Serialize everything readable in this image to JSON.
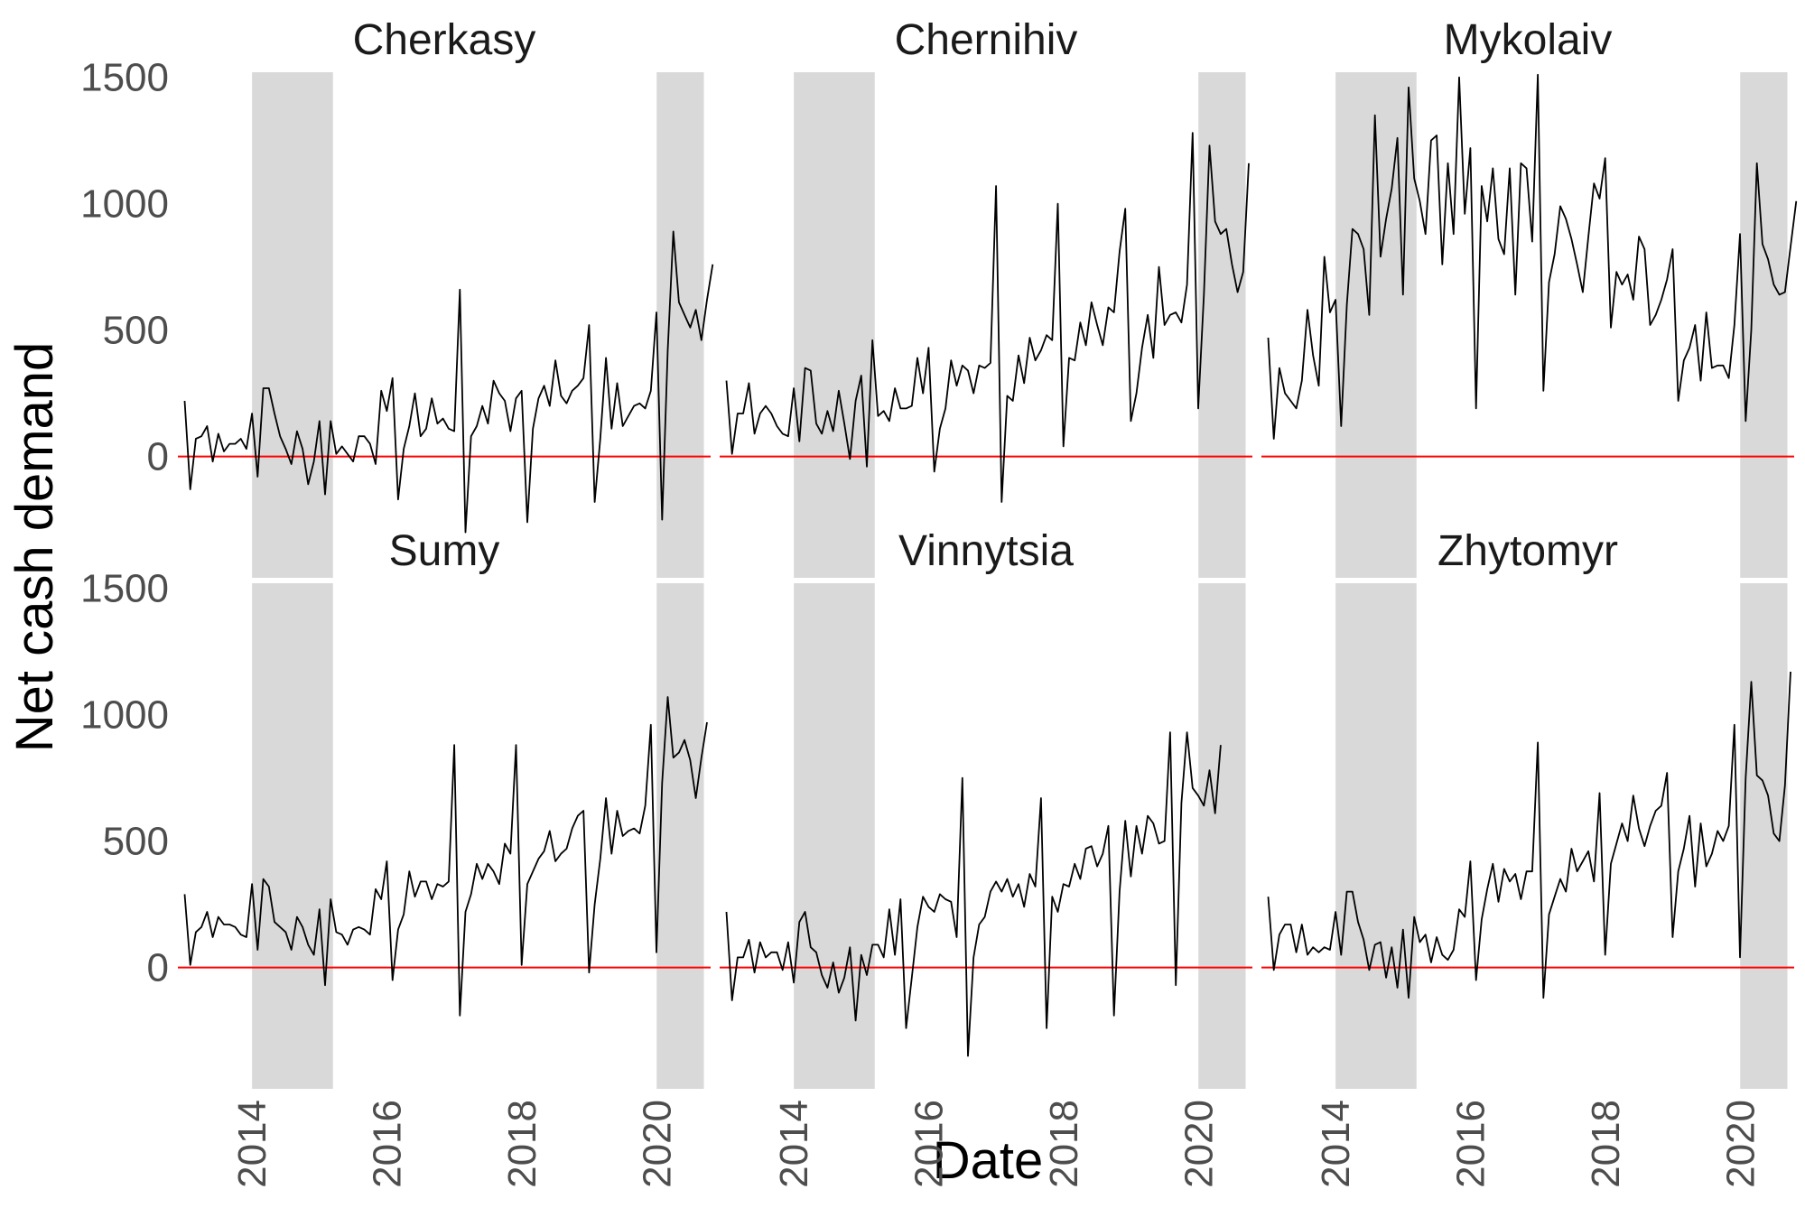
{
  "chart_data": {
    "type": "line",
    "ylabel": "Net cash demand",
    "xlabel": "Date",
    "x_range": [
      2012.9,
      2020.8
    ],
    "ylim": [
      -480,
      1520
    ],
    "yticks": [
      0,
      500,
      1000,
      1500
    ],
    "xticks": [
      2014,
      2016,
      2018,
      2020
    ],
    "shaded_periods": [
      [
        2014.0,
        2015.2
      ],
      [
        2020.0,
        2020.7
      ]
    ],
    "reference_line": 0,
    "grid": false,
    "colors": {
      "line": "#000000",
      "reference": "#ff0000",
      "shade": "#d9d9d9"
    },
    "facets": [
      {
        "title": "Cherkasy",
        "start": 2013.0,
        "step": 0.0833,
        "values": [
          220,
          -130,
          70,
          80,
          120,
          -20,
          90,
          20,
          50,
          50,
          70,
          30,
          170,
          -80,
          270,
          270,
          170,
          80,
          30,
          -30,
          100,
          30,
          -110,
          -20,
          140,
          -150,
          140,
          10,
          40,
          10,
          -20,
          80,
          80,
          50,
          -30,
          260,
          180,
          310,
          -170,
          30,
          120,
          250,
          80,
          110,
          230,
          130,
          150,
          110,
          100,
          660,
          -300,
          80,
          120,
          200,
          130,
          300,
          250,
          220,
          100,
          230,
          260,
          -260,
          110,
          230,
          280,
          200,
          380,
          240,
          210,
          260,
          280,
          310,
          520,
          -180,
          70,
          390,
          110,
          290,
          120,
          160,
          200,
          210,
          190,
          260,
          570,
          -250,
          420,
          890,
          610,
          560,
          510,
          580,
          460,
          620,
          760
        ]
      },
      {
        "title": "Chernihiv",
        "start": 2013.0,
        "step": 0.0833,
        "values": [
          300,
          10,
          170,
          170,
          290,
          90,
          170,
          200,
          170,
          120,
          90,
          80,
          270,
          60,
          350,
          340,
          130,
          90,
          180,
          100,
          260,
          130,
          -10,
          220,
          320,
          -40,
          460,
          160,
          180,
          140,
          270,
          190,
          190,
          200,
          390,
          250,
          430,
          -60,
          110,
          190,
          380,
          280,
          360,
          340,
          250,
          360,
          350,
          370,
          1070,
          -180,
          240,
          220,
          400,
          290,
          470,
          380,
          420,
          480,
          460,
          1000,
          40,
          390,
          380,
          530,
          440,
          610,
          520,
          440,
          590,
          570,
          810,
          980,
          140,
          250,
          430,
          560,
          390,
          750,
          520,
          560,
          570,
          530,
          680,
          1280,
          190,
          640,
          1230,
          930,
          880,
          900,
          760,
          650,
          730,
          1160
        ]
      },
      {
        "title": "Mykolaiv",
        "start": 2013.0,
        "step": 0.0833,
        "values": [
          470,
          70,
          350,
          250,
          220,
          190,
          300,
          580,
          400,
          280,
          790,
          570,
          620,
          120,
          600,
          900,
          880,
          820,
          560,
          1350,
          790,
          940,
          1060,
          1260,
          640,
          1460,
          1100,
          1010,
          880,
          1250,
          1270,
          760,
          1160,
          880,
          1500,
          960,
          1220,
          190,
          1070,
          930,
          1140,
          860,
          800,
          1140,
          640,
          1160,
          1140,
          850,
          1510,
          260,
          690,
          800,
          990,
          940,
          860,
          760,
          650,
          870,
          1080,
          1020,
          1180,
          510,
          730,
          680,
          720,
          620,
          870,
          820,
          520,
          560,
          620,
          700,
          820,
          220,
          380,
          430,
          520,
          300,
          570,
          350,
          360,
          360,
          310,
          520,
          880,
          140,
          500,
          1160,
          840,
          780,
          680,
          640,
          650,
          830,
          1010
        ]
      },
      {
        "title": "Sumy",
        "start": 2013.0,
        "step": 0.0833,
        "values": [
          290,
          10,
          140,
          160,
          220,
          120,
          200,
          170,
          170,
          160,
          130,
          120,
          330,
          70,
          350,
          320,
          180,
          160,
          140,
          70,
          200,
          160,
          90,
          50,
          230,
          -70,
          270,
          140,
          130,
          90,
          150,
          160,
          150,
          130,
          310,
          270,
          420,
          -50,
          150,
          210,
          380,
          280,
          340,
          340,
          270,
          330,
          320,
          340,
          880,
          -190,
          220,
          290,
          410,
          350,
          410,
          380,
          330,
          490,
          450,
          880,
          10,
          330,
          380,
          430,
          460,
          540,
          420,
          450,
          470,
          550,
          600,
          620,
          -20,
          250,
          430,
          670,
          450,
          620,
          520,
          540,
          550,
          530,
          640,
          960,
          60,
          730,
          1070,
          830,
          850,
          900,
          820,
          670,
          830,
          970
        ]
      },
      {
        "title": "Vinnytsia",
        "start": 2013.0,
        "step": 0.0833,
        "values": [
          220,
          -130,
          40,
          40,
          110,
          -20,
          100,
          40,
          60,
          60,
          -10,
          100,
          -60,
          180,
          220,
          80,
          60,
          -30,
          -80,
          20,
          -100,
          -40,
          80,
          -210,
          50,
          -30,
          90,
          90,
          40,
          230,
          50,
          270,
          -240,
          -40,
          160,
          280,
          240,
          220,
          290,
          270,
          260,
          120,
          750,
          -350,
          40,
          170,
          200,
          300,
          340,
          300,
          350,
          280,
          330,
          240,
          370,
          320,
          670,
          -240,
          280,
          220,
          330,
          320,
          410,
          350,
          470,
          480,
          400,
          450,
          560,
          -190,
          300,
          580,
          360,
          560,
          450,
          600,
          570,
          490,
          500,
          930,
          -70,
          650,
          930,
          710,
          680,
          640,
          780,
          610,
          880
        ]
      },
      {
        "title": "Zhytomyr",
        "start": 2013.0,
        "step": 0.0833,
        "values": [
          280,
          -10,
          130,
          170,
          170,
          60,
          170,
          50,
          80,
          60,
          80,
          70,
          220,
          50,
          300,
          300,
          180,
          110,
          -10,
          90,
          100,
          -40,
          80,
          -80,
          150,
          -120,
          200,
          100,
          130,
          20,
          120,
          50,
          30,
          70,
          230,
          200,
          420,
          -50,
          190,
          310,
          410,
          260,
          390,
          340,
          370,
          270,
          380,
          380,
          890,
          -120,
          210,
          280,
          350,
          300,
          470,
          380,
          420,
          460,
          340,
          690,
          50,
          410,
          490,
          570,
          500,
          680,
          550,
          480,
          560,
          620,
          640,
          770,
          120,
          380,
          470,
          600,
          320,
          570,
          400,
          450,
          540,
          500,
          560,
          960,
          40,
          750,
          1130,
          760,
          740,
          680,
          530,
          500,
          720,
          1170
        ]
      }
    ]
  }
}
